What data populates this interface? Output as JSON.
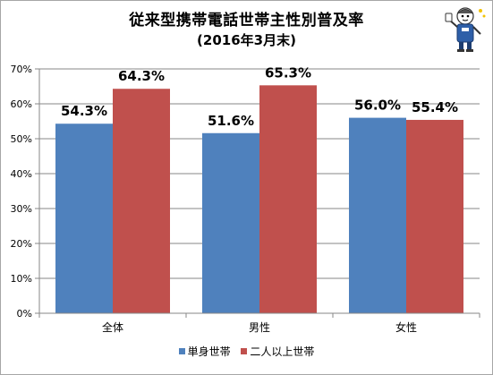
{
  "chart_data": {
    "type": "bar",
    "title": "従来型携帯電話世帯主性別普及率",
    "subtitle": "(2016年3月末)",
    "categories": [
      "全体",
      "男性",
      "女性"
    ],
    "series": [
      {
        "name": "単身世帯",
        "values": [
          54.3,
          51.6,
          56.0
        ],
        "color": "#4f81bd",
        "labels": [
          "54.3%",
          "51.6%",
          "56.0%"
        ]
      },
      {
        "name": "二人以上世帯",
        "values": [
          64.3,
          65.3,
          55.4
        ],
        "color": "#c0504d",
        "labels": [
          "64.3%",
          "65.3%",
          "55.4%"
        ]
      }
    ],
    "ylim": [
      0,
      70
    ],
    "yticks": [
      0,
      10,
      20,
      30,
      40,
      50,
      60,
      70
    ],
    "ytick_labels": [
      "0%",
      "10%",
      "20%",
      "30%",
      "40%",
      "50%",
      "60%",
      "70%"
    ],
    "grid": true,
    "legend": "bottom"
  },
  "mascot_icon": "mascot-character-icon"
}
